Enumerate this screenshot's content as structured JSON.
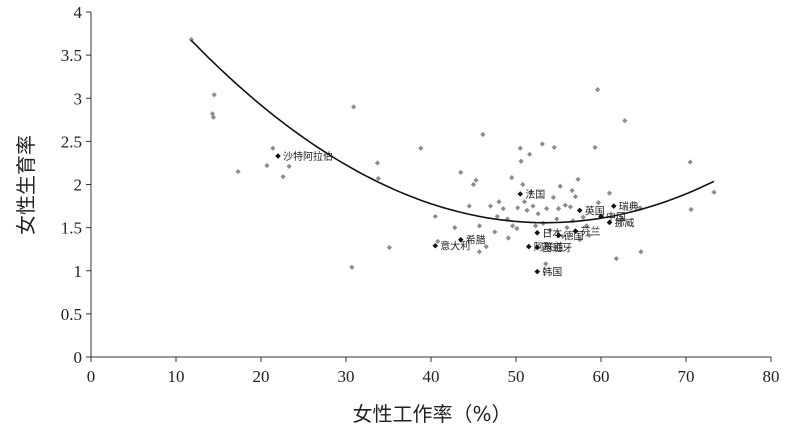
{
  "chart_data": {
    "type": "scatter",
    "xlabel": "女性工作率（%）",
    "ylabel": "女性生育率",
    "xlim": [
      0,
      80
    ],
    "ylim": [
      0,
      4
    ],
    "x_ticks": [
      0,
      10,
      20,
      30,
      40,
      50,
      60,
      70,
      80
    ],
    "y_ticks": [
      0,
      0.5,
      1,
      1.5,
      2,
      2.5,
      3,
      3.5,
      4
    ],
    "y_tick_labels": [
      "0",
      "0.5",
      "1",
      "1.5",
      "2",
      "2.5",
      "3",
      "3.5",
      "4"
    ],
    "grid": false,
    "legend": "none",
    "colors": {
      "point": "#8c8c8c",
      "highlight": "#111111",
      "trend": "#111111"
    },
    "trend_coefficients": [
      5.039,
      -0.1303,
      0.001219
    ],
    "trend_x_range": [
      11.8,
      73.3
    ],
    "labeled_points": [
      {
        "label": "沙特阿拉伯",
        "x": 22,
        "y": 2.33
      },
      {
        "label": "法国",
        "x": 50.5,
        "y": 1.89
      },
      {
        "label": "英国",
        "x": 57.5,
        "y": 1.7
      },
      {
        "label": "瑞典",
        "x": 61.5,
        "y": 1.75
      },
      {
        "label": "中国",
        "x": 60,
        "y": 1.63
      },
      {
        "label": "挪威",
        "x": 61,
        "y": 1.56
      },
      {
        "label": "日本",
        "x": 52.5,
        "y": 1.44
      },
      {
        "label": "德国",
        "x": 55,
        "y": 1.41
      },
      {
        "label": "芬兰",
        "x": 57,
        "y": 1.46
      },
      {
        "label": "希腊",
        "x": 43.5,
        "y": 1.36
      },
      {
        "label": "阿联酋",
        "x": 51.5,
        "y": 1.28
      },
      {
        "label": "西班牙",
        "x": 52.5,
        "y": 1.27
      },
      {
        "label": "意大利",
        "x": 40.5,
        "y": 1.29
      },
      {
        "label": "韩国",
        "x": 52.5,
        "y": 0.99
      }
    ],
    "points": [
      [
        11.8,
        3.68
      ],
      [
        14.5,
        3.04
      ],
      [
        14.3,
        2.82
      ],
      [
        14.4,
        2.78
      ],
      [
        17.3,
        2.15
      ],
      [
        20.7,
        2.22
      ],
      [
        21.4,
        2.42
      ],
      [
        22.6,
        2.09
      ],
      [
        23.3,
        2.21
      ],
      [
        30.9,
        2.9
      ],
      [
        30.7,
        1.04
      ],
      [
        33.7,
        2.25
      ],
      [
        33.8,
        2.07
      ],
      [
        35.1,
        1.27
      ],
      [
        38.8,
        2.42
      ],
      [
        40.5,
        1.63
      ],
      [
        40.8,
        1.34
      ],
      [
        42.8,
        1.5
      ],
      [
        43.5,
        2.14
      ],
      [
        44.5,
        1.75
      ],
      [
        45.0,
        2.0
      ],
      [
        45.3,
        2.05
      ],
      [
        45.7,
        1.52
      ],
      [
        45.7,
        1.22
      ],
      [
        46.1,
        2.58
      ],
      [
        46.5,
        1.28
      ],
      [
        47.0,
        1.75
      ],
      [
        47.5,
        1.45
      ],
      [
        47.8,
        1.63
      ],
      [
        48.0,
        1.8
      ],
      [
        48.5,
        1.72
      ],
      [
        49.0,
        1.6
      ],
      [
        49.1,
        1.38
      ],
      [
        49.5,
        2.08
      ],
      [
        49.6,
        1.52
      ],
      [
        50.1,
        1.49
      ],
      [
        50.2,
        1.73
      ],
      [
        50.5,
        2.42
      ],
      [
        50.6,
        2.27
      ],
      [
        50.8,
        2.0
      ],
      [
        51.0,
        1.8
      ],
      [
        51.3,
        1.7
      ],
      [
        51.6,
        2.35
      ],
      [
        51.7,
        1.91
      ],
      [
        52.0,
        1.75
      ],
      [
        52.3,
        1.52
      ],
      [
        52.6,
        1.66
      ],
      [
        53.1,
        2.47
      ],
      [
        53.2,
        1.55
      ],
      [
        53.5,
        1.08
      ],
      [
        53.6,
        1.72
      ],
      [
        54.0,
        1.47
      ],
      [
        54.4,
        1.85
      ],
      [
        54.5,
        2.43
      ],
      [
        54.8,
        1.6
      ],
      [
        55.0,
        1.72
      ],
      [
        55.2,
        1.98
      ],
      [
        55.5,
        1.4
      ],
      [
        55.8,
        1.76
      ],
      [
        56.0,
        1.5
      ],
      [
        56.4,
        1.74
      ],
      [
        56.6,
        1.93
      ],
      [
        56.7,
        1.58
      ],
      [
        57.0,
        1.86
      ],
      [
        57.3,
        2.06
      ],
      [
        57.5,
        1.36
      ],
      [
        57.9,
        1.62
      ],
      [
        58.3,
        1.52
      ],
      [
        58.6,
        1.41
      ],
      [
        59.3,
        2.43
      ],
      [
        59.6,
        3.1
      ],
      [
        59.7,
        1.79
      ],
      [
        61.0,
        1.9
      ],
      [
        61.8,
        1.14
      ],
      [
        62.5,
        1.6
      ],
      [
        62.8,
        2.74
      ],
      [
        64.6,
        1.73
      ],
      [
        64.7,
        1.22
      ],
      [
        70.5,
        2.26
      ],
      [
        70.6,
        1.71
      ],
      [
        73.3,
        1.91
      ]
    ]
  }
}
